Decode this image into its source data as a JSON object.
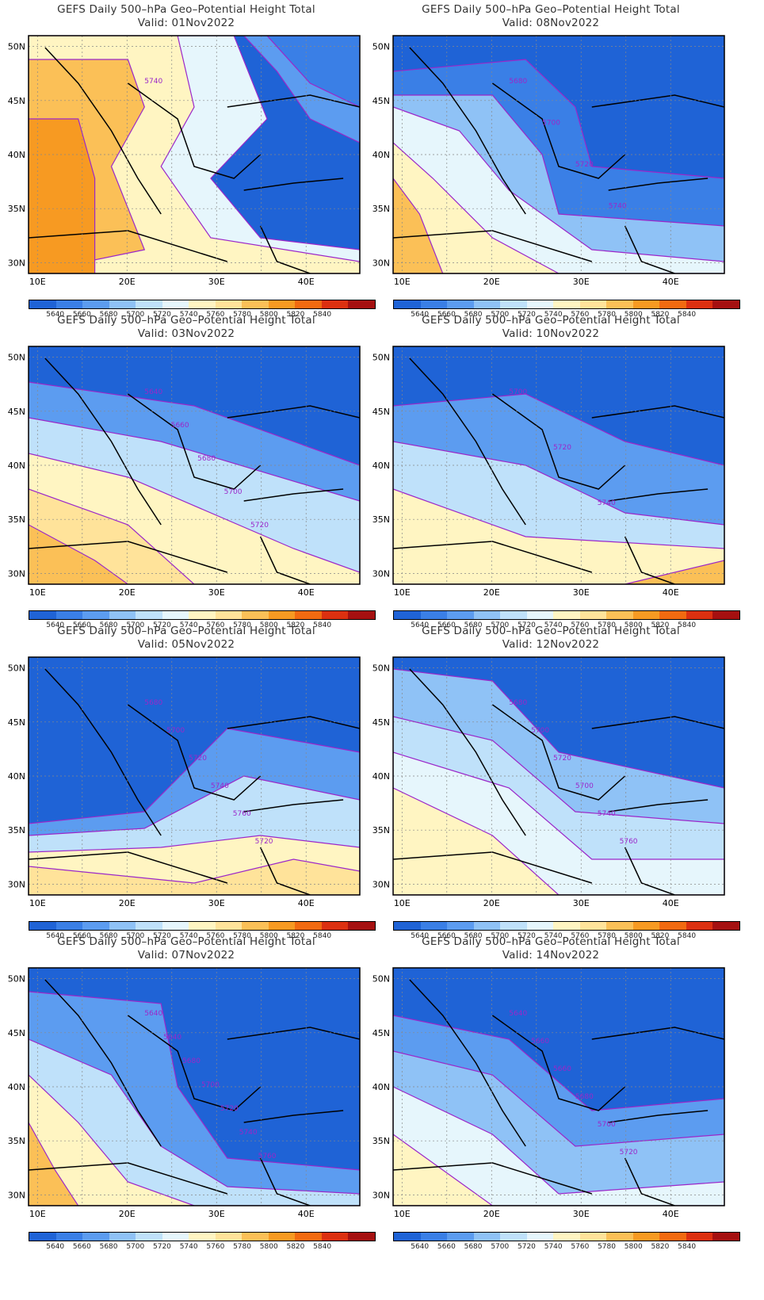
{
  "title_line": "GEFS Daily 500–hPa Geo–Potential Height Total",
  "axes": {
    "y_ticks": [
      "50N",
      "45N",
      "40N",
      "35N",
      "30N"
    ],
    "x_ticks": [
      "10E",
      "20E",
      "30E",
      "40E"
    ],
    "lat_range": [
      29,
      51
    ],
    "lon_range": [
      9,
      46
    ]
  },
  "colorbar": {
    "labels": [
      "5640",
      "5660",
      "5680",
      "5700",
      "5720",
      "5740",
      "5760",
      "5780",
      "5800",
      "5820",
      "5840"
    ],
    "colors": [
      "#1f63d6",
      "#3a7fe6",
      "#5c9cf0",
      "#8fc2f6",
      "#bfe1fa",
      "#e6f6fc",
      "#fff5c2",
      "#ffe39a",
      "#fbc057",
      "#f79a22",
      "#f26a10",
      "#dc3010",
      "#a51010"
    ]
  },
  "panels": [
    {
      "valid": "Valid: 01Nov2022",
      "labels": [
        "5740"
      ]
    },
    {
      "valid": "Valid: 08Nov2022",
      "labels": [
        "5680",
        "5700",
        "5720",
        "5740"
      ]
    },
    {
      "valid": "Valid: 03Nov2022",
      "labels": [
        "5640",
        "5660",
        "5680",
        "5700",
        "5720"
      ]
    },
    {
      "valid": "Valid: 10Nov2022",
      "labels": [
        "5700",
        "5720",
        "5740"
      ]
    },
    {
      "valid": "Valid: 05Nov2022",
      "labels": [
        "5680",
        "5700",
        "5720",
        "5740",
        "5760",
        "5720"
      ]
    },
    {
      "valid": "Valid: 12Nov2022",
      "labels": [
        "5680",
        "5700",
        "5720",
        "5700",
        "5740",
        "5760"
      ]
    },
    {
      "valid": "Valid: 07Nov2022",
      "labels": [
        "5640",
        "5640",
        "5680",
        "5700",
        "5720",
        "5740",
        "5760"
      ]
    },
    {
      "valid": "Valid: 14Nov2022",
      "labels": [
        "5640",
        "5660",
        "5660",
        "5680",
        "5700",
        "5720"
      ]
    }
  ]
}
